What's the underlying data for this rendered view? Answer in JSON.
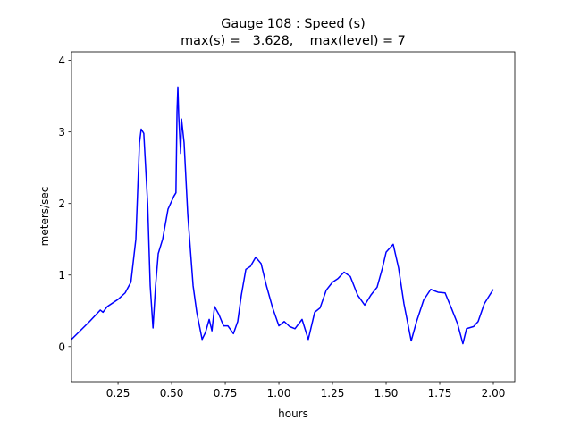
{
  "chart_data": {
    "type": "line",
    "title": "Gauge 108 : Speed (s)",
    "subtitle": "max(s) =   3.628,    max(level) = 7",
    "xlabel": "hours",
    "ylabel": "meters/sec",
    "xlim": [
      0.033,
      2.1
    ],
    "ylim": [
      -0.49,
      4.12
    ],
    "xticks": [
      {
        "value": 0.25,
        "label": "0.25"
      },
      {
        "value": 0.5,
        "label": "0.50"
      },
      {
        "value": 0.75,
        "label": "0.75"
      },
      {
        "value": 1.0,
        "label": "1.00"
      },
      {
        "value": 1.25,
        "label": "1.25"
      },
      {
        "value": 1.5,
        "label": "1.50"
      },
      {
        "value": 1.75,
        "label": "1.75"
      },
      {
        "value": 2.0,
        "label": "2.00"
      }
    ],
    "yticks": [
      0,
      1,
      2,
      3,
      4
    ],
    "grid": false,
    "series": [
      {
        "color": "#0000ff",
        "x": [
          0.033,
          0.117,
          0.167,
          0.18,
          0.2,
          0.25,
          0.283,
          0.31,
          0.333,
          0.35,
          0.358,
          0.37,
          0.388,
          0.4,
          0.413,
          0.425,
          0.4375,
          0.458,
          0.483,
          0.51,
          0.52,
          0.525,
          0.529,
          0.533,
          0.542,
          0.546,
          0.558,
          0.575,
          0.6,
          0.617,
          0.642,
          0.658,
          0.675,
          0.688,
          0.7,
          0.72,
          0.742,
          0.762,
          0.788,
          0.808,
          0.825,
          0.846,
          0.867,
          0.892,
          0.917,
          0.942,
          0.971,
          1.0,
          1.025,
          1.05,
          1.075,
          1.108,
          1.137,
          1.167,
          1.192,
          1.221,
          1.25,
          1.275,
          1.304,
          1.333,
          1.367,
          1.4,
          1.429,
          1.458,
          1.483,
          1.5,
          1.533,
          1.558,
          1.583,
          1.617,
          1.642,
          1.675,
          1.708,
          1.742,
          1.775,
          1.804,
          1.833,
          1.858,
          1.875,
          1.908,
          1.929,
          1.958,
          1.983,
          2.0
        ],
        "values": [
          0.1,
          0.35,
          0.51,
          0.48,
          0.56,
          0.66,
          0.75,
          0.9,
          1.5,
          2.85,
          3.04,
          2.98,
          2.0,
          0.85,
          0.26,
          0.85,
          1.3,
          1.5,
          1.92,
          2.1,
          2.15,
          3.28,
          3.628,
          3.22,
          2.7,
          3.18,
          2.85,
          1.85,
          0.85,
          0.48,
          0.1,
          0.2,
          0.38,
          0.22,
          0.56,
          0.45,
          0.29,
          0.29,
          0.18,
          0.35,
          0.72,
          1.08,
          1.12,
          1.25,
          1.16,
          0.85,
          0.54,
          0.29,
          0.35,
          0.28,
          0.25,
          0.38,
          0.1,
          0.48,
          0.54,
          0.79,
          0.9,
          0.95,
          1.04,
          0.98,
          0.72,
          0.58,
          0.72,
          0.83,
          1.1,
          1.32,
          1.43,
          1.1,
          0.6,
          0.08,
          0.35,
          0.65,
          0.8,
          0.76,
          0.75,
          0.54,
          0.32,
          0.04,
          0.25,
          0.28,
          0.35,
          0.6,
          0.72,
          0.8
        ]
      }
    ]
  }
}
